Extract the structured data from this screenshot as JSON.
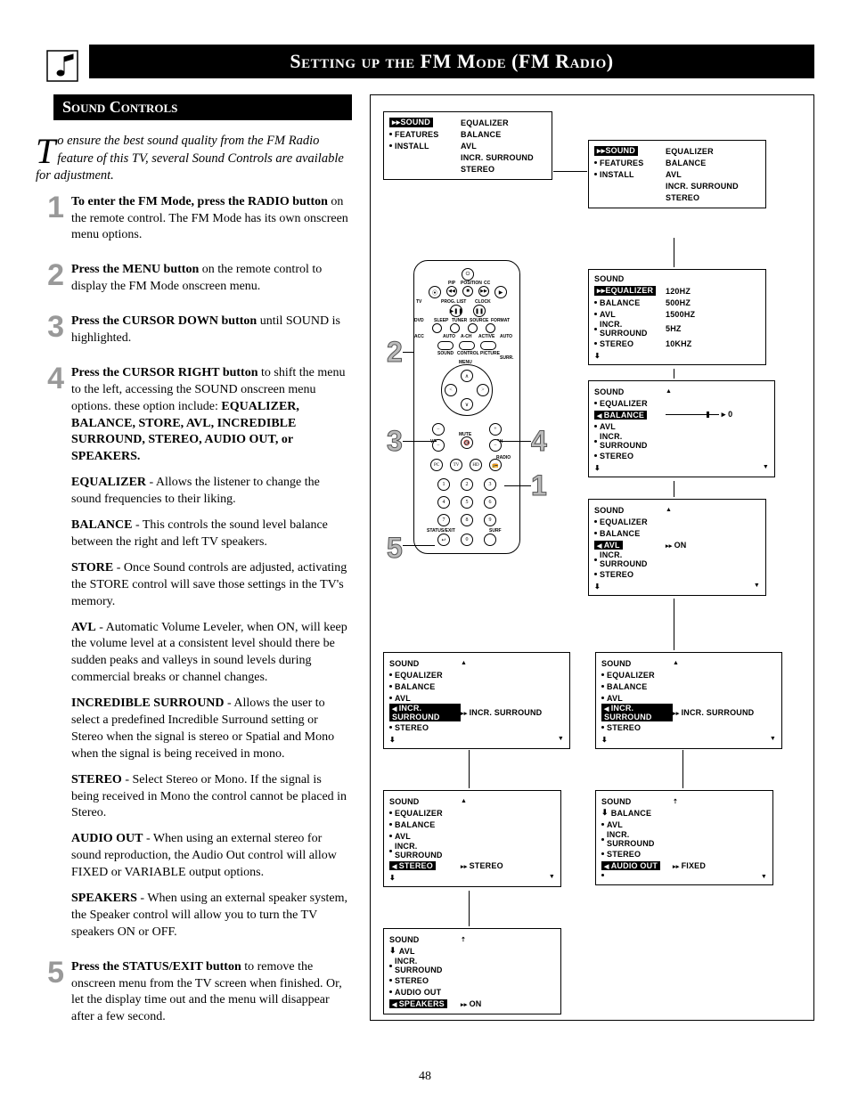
{
  "page_number": "48",
  "main_title": "Setting up the FM Mode (FM Radio)",
  "sub_title": "Sound Controls",
  "intro_dropcap": "T",
  "intro_rest": "o ensure the best sound quality from the FM Radio feature of this TV, several Sound Controls are available for adjustment.",
  "steps": [
    {
      "num": "1",
      "paras": [
        "<b>To enter the FM Mode, press the RADIO button</b> on the remote control. The FM Mode has its own onscreen menu options."
      ]
    },
    {
      "num": "2",
      "paras": [
        "<b>Press the MENU button</b> on the remote control to display the FM Mode onscreen menu."
      ]
    },
    {
      "num": "3",
      "paras": [
        "<b>Press the CURSOR DOWN button</b> until SOUND is highlighted."
      ]
    },
    {
      "num": "4",
      "paras": [
        "<b>Press the CURSOR RIGHT button</b> to shift the menu to the left, accessing the SOUND onscreen menu options. these option include: <b>EQUALIZER, BALANCE, STORE, AVL, INCREDIBLE SURROUND, STEREO, AUDIO OUT, or SPEAKERS.</b>",
        "<b>EQUALIZER</b> - Allows the listener to change the sound frequencies to their liking.",
        "<b>BALANCE</b> - This controls the sound level balance between the right and left TV speakers.",
        "<b>STORE</b> - Once Sound controls are adjusted, activating the STORE control will save those settings in the TV's memory.",
        "<b>AVL</b> - Automatic Volume Leveler, when ON, will keep the volume level at a consistent level should there be sudden peaks and valleys in sound levels during commercial breaks or channel changes.",
        "<b>INCREDIBLE SURROUND</b> - Allows the user to select a predefined Incredible Surround setting or Stereo when the signal is stereo or Spatial and Mono when the signal is being received in mono.",
        "<b>STEREO</b> - Select Stereo or Mono. If the signal is being received in Mono the control cannot be placed in Stereo.",
        "<b>AUDIO OUT</b> - When using an external stereo for sound reproduction, the Audio Out control will allow FIXED or VARIABLE output options.",
        "<b>SPEAKERS</b> - When using an external speaker system, the Speaker control will allow you to turn the TV speakers ON or OFF."
      ]
    },
    {
      "num": "5",
      "paras": [
        "<b>Press the STATUS/EXIT button</b> to remove the onscreen menu from the TV screen when finished. Or, let the display time out and the menu will disappear after a few second."
      ]
    }
  ],
  "menu_common": {
    "sound": "SOUND",
    "features": "FEATURES",
    "install": "INSTALL",
    "equalizer": "EQUALIZER",
    "balance": "BALANCE",
    "avl": "AVL",
    "incr_surround": "INCR. SURROUND",
    "stereo": "STEREO",
    "audio_out": "AUDIO OUT",
    "speakers": "SPEAKERS"
  },
  "eq_values": [
    "120HZ",
    "500HZ",
    "1500HZ",
    "5HZ",
    "10KHZ"
  ],
  "val_on": "ON",
  "val_incr_surround": "INCR. SURROUND",
  "val_stereo": "STEREO",
  "val_fixed": "FIXED",
  "val_zero": "0",
  "callouts": {
    "c1": "1",
    "c2": "2",
    "c3": "3",
    "c4": "4",
    "c5": "5"
  },
  "remote_labels": {
    "pip": "PIP",
    "position": "POSITION",
    "cc": "CC",
    "tv": "TV",
    "prog_list": "PROG. LIST",
    "clock": "CLOCK",
    "dvd": "DVD",
    "sleep": "SLEEP",
    "tuner": "TUNER",
    "source": "SOURCE",
    "format": "FORMAT",
    "acc": "ACC",
    "auto": "AUTO",
    "a-ch": "A-CH",
    "active": "ACTIVE",
    "sound": "SOUND",
    "control": "CONTROL",
    "picture": "PICTURE",
    "menu": "MENU",
    "surr": "SURR.",
    "vol": "VOL",
    "ch": "CH",
    "mute": "MUTE",
    "radio": "RADIO",
    "pc": "PC",
    "tvb": "TV",
    "hd": "HD",
    "status": "STATUS/EXIT",
    "surf": "SURF"
  },
  "colors": {
    "bg": "#ffffff",
    "fg": "#000000",
    "step_num": "#999999",
    "callout": "#bbbbbb"
  }
}
